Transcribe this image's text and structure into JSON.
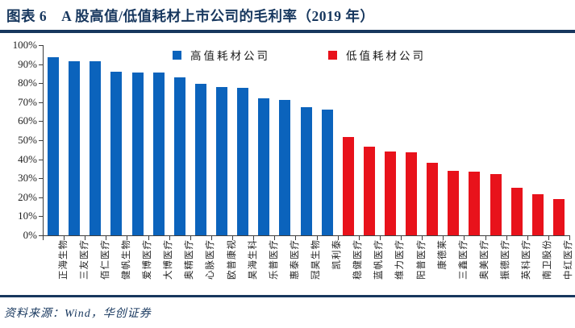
{
  "header": {
    "title": "图表 6　A 股高值/低值耗材上市公司的毛利率（2019 年）"
  },
  "footer": {
    "source_note": "资料来源：Wind，华创证券"
  },
  "colors": {
    "navy": "#17375E",
    "high_value_blue": "#0B63BC",
    "low_value_red": "#E8121B",
    "axis": "#3d3d3d"
  },
  "chart_data": {
    "type": "bar",
    "title": "A 股高值/低值耗材上市公司的毛利率（2019 年）",
    "ylim": [
      0,
      100
    ],
    "ytick_step": 10,
    "ytick_labels": [
      "0%",
      "10%",
      "20%",
      "30%",
      "40%",
      "50%",
      "60%",
      "70%",
      "80%",
      "90%",
      "100%"
    ],
    "grid": false,
    "legend_position": "top",
    "series": [
      {
        "name": "高值耗材公司",
        "color": "#0B63BC",
        "categories": [
          "正海生物",
          "三友医疗",
          "佰仁医疗",
          "健帆生物",
          "爱博医疗",
          "大博医疗",
          "奥精医疗",
          "心脉医疗",
          "欧普康视",
          "昊海生科",
          "乐普医疗",
          "惠泰医疗",
          "冠昊生物",
          "凯利泰"
        ],
        "values": [
          93.5,
          91.5,
          91.5,
          86,
          85.5,
          85.5,
          83,
          79.5,
          78,
          77.5,
          72,
          71,
          67.5,
          66
        ]
      },
      {
        "name": "低值耗材公司",
        "color": "#E8121B",
        "categories": [
          "稳健医疗",
          "蓝帆医疗",
          "维力医疗",
          "阳普医疗",
          "康德莱",
          "三鑫医疗",
          "奥美医疗",
          "振德医疗",
          "英科医疗",
          "南卫股份",
          "中红医疗"
        ],
        "values": [
          51.5,
          46.5,
          44,
          43.5,
          38,
          34,
          33.5,
          32,
          25,
          21.5,
          19
        ]
      }
    ]
  }
}
